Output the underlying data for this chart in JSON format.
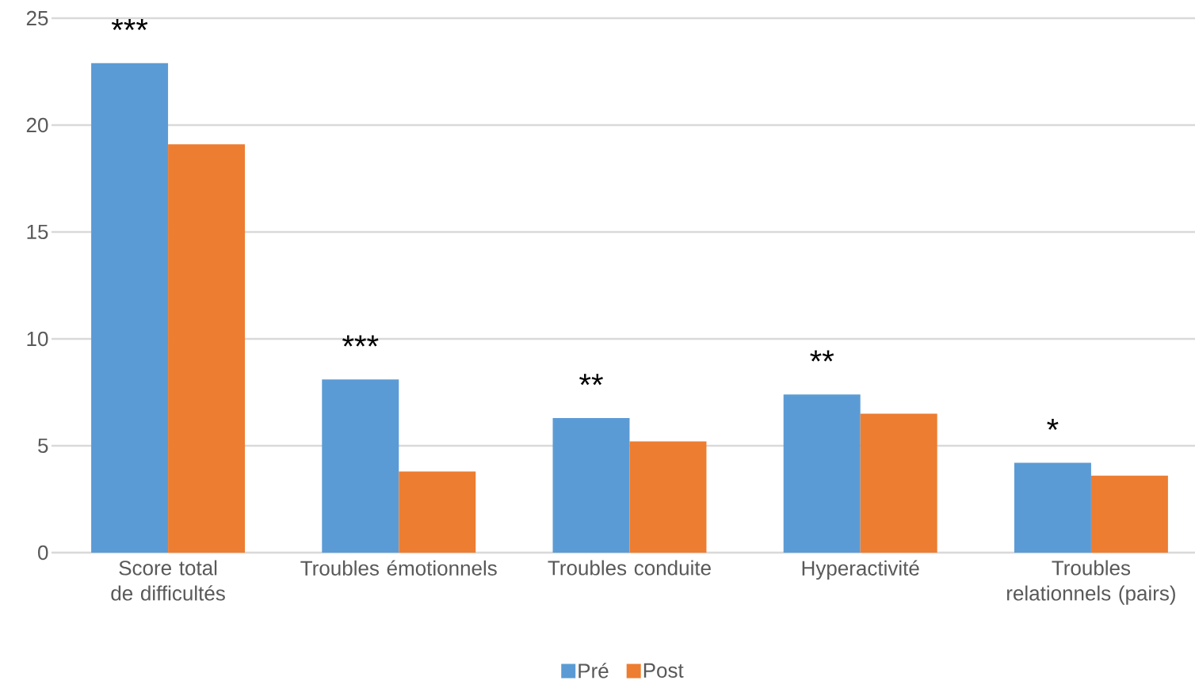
{
  "chart_data": {
    "type": "bar",
    "categories": [
      "Score total de difficultés",
      "Troubles émotionnels",
      "Troubles conduite",
      "Hyperactivité",
      "Troubles relationnels (pairs)"
    ],
    "series": [
      {
        "name": "Pré",
        "color": "#5b9bd5",
        "values": [
          22.9,
          8.1,
          6.3,
          7.4,
          4.2
        ]
      },
      {
        "name": "Post",
        "color": "#ed7d31",
        "values": [
          19.1,
          3.8,
          5.2,
          6.5,
          3.6
        ]
      }
    ],
    "ylim": [
      0,
      25
    ],
    "yticks": [
      0,
      5,
      10,
      15,
      20,
      25
    ],
    "grid": "y",
    "legend": "bottom",
    "annotations": [
      "***",
      "***",
      "**",
      "**",
      "*"
    ]
  }
}
